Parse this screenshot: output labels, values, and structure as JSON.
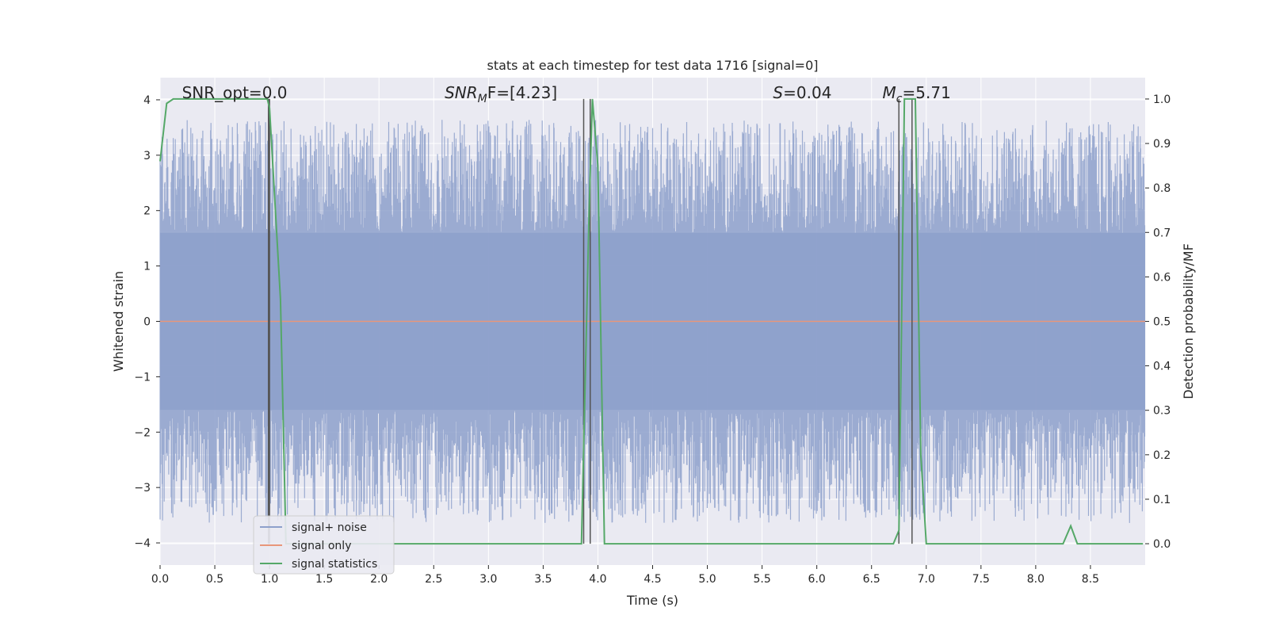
{
  "chart_data": {
    "type": "line",
    "title": "stats at each timestep for test data 1716 [signal=0]",
    "xlabel": "Time (s)",
    "ylabel": "Whitened strain",
    "ylabel_right": "Detection probability/MF",
    "xlim": [
      0.0,
      9.0
    ],
    "ylim": [
      -4.4,
      4.4
    ],
    "ylim_right": [
      -0.048,
      1.048
    ],
    "x_ticks": [
      "0.0",
      "0.5",
      "1.0",
      "1.5",
      "2.0",
      "2.5",
      "3.0",
      "3.5",
      "4.0",
      "4.5",
      "5.0",
      "5.5",
      "6.0",
      "6.5",
      "7.0",
      "7.5",
      "8.0",
      "8.5"
    ],
    "y_ticks": [
      "−4",
      "−3",
      "−2",
      "−1",
      "0",
      "1",
      "2",
      "3",
      "4"
    ],
    "y_ticks_right": [
      "0.0",
      "0.1",
      "0.2",
      "0.3",
      "0.4",
      "0.5",
      "0.6",
      "0.7",
      "0.8",
      "0.9",
      "1.0"
    ],
    "grid": true,
    "legend_position": "lower-left",
    "series": [
      {
        "name": "signal+ noise",
        "color": "#8da0cb",
        "description_type": "noise",
        "amplitude_band": [
          -1.6,
          1.6
        ],
        "peak_range": [
          -4.0,
          4.0
        ]
      },
      {
        "name": "signal only",
        "color": "#e8967a",
        "values_constant": 0.0
      },
      {
        "name": "signal statistics",
        "color": "#55a868",
        "x": [
          0.0,
          0.06,
          0.12,
          0.5,
          0.98,
          1.0,
          1.1,
          1.15,
          3.85,
          3.92,
          3.95,
          4.0,
          4.06,
          4.1,
          6.7,
          6.75,
          6.8,
          6.85,
          6.9,
          6.95,
          7.0,
          8.25,
          8.32,
          8.38,
          8.98
        ],
        "values": [
          0.86,
          0.99,
          1.0,
          1.0,
          1.0,
          0.98,
          0.55,
          0.0,
          0.0,
          0.75,
          1.0,
          0.85,
          0.0,
          0.0,
          0.0,
          0.03,
          1.0,
          1.0,
          1.0,
          0.2,
          0.0,
          0.0,
          0.04,
          0.0,
          0.0
        ],
        "axis": "right"
      }
    ],
    "vertical_markers_x": [
      0.99,
      1.0,
      3.87,
      3.93,
      6.75,
      6.87
    ],
    "annotations": [
      {
        "text": "SNR_opt=0.0",
        "x": 0.2
      },
      {
        "text_main": "SNR",
        "text_sub": "M",
        "text_rest": "F=[4.23]",
        "x": 2.6
      },
      {
        "text_italic": "S",
        "text_rest": "=0.04",
        "x": 5.6
      },
      {
        "text_italic": "M",
        "text_sub": "c",
        "text_rest": "=5.71",
        "x": 6.6
      }
    ]
  }
}
